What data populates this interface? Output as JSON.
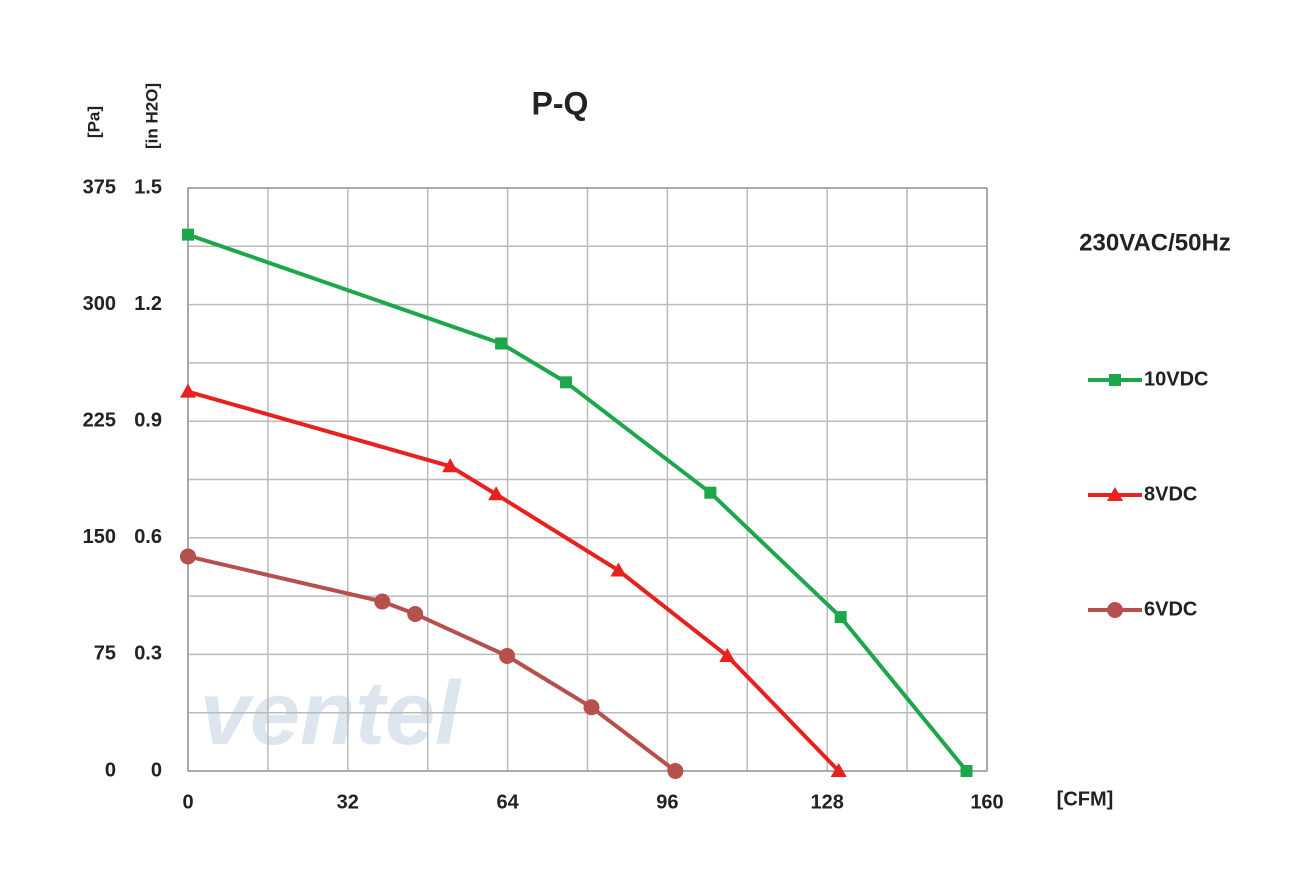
{
  "chart_data": {
    "type": "line",
    "title": "P-Q",
    "annotation": "230VAC/50Hz",
    "y_label": "[Pa]",
    "y2_label": "[in H2O]",
    "x_label": "[CFM]",
    "watermark": "ventel",
    "xlim": [
      0,
      160
    ],
    "xticks": [
      0,
      32,
      64,
      96,
      128,
      160
    ],
    "ylim": [
      0,
      375
    ],
    "yticks": [
      0,
      75,
      150,
      225,
      300,
      375
    ],
    "y2lim": [
      0,
      1.5
    ],
    "y2ticks": [
      0,
      0.3,
      0.6,
      0.9,
      1.2,
      1.5
    ],
    "grid": true,
    "minor_grid": true,
    "legend": "right",
    "series": [
      {
        "name": "10VDC",
        "color": "#1ea64b",
        "marker": "square",
        "x": [
          0,
          62.7,
          75.7,
          104.6,
          130.7,
          155.9
        ],
        "values": [
          345,
          275,
          250,
          179,
          99,
          0
        ]
      },
      {
        "name": "8VDC",
        "color": "#e8201e",
        "marker": "triangle",
        "x": [
          0,
          52.5,
          61.7,
          86.2,
          108,
          130.3
        ],
        "values": [
          244,
          196,
          178,
          129,
          74,
          0
        ]
      },
      {
        "name": "6VDC",
        "color": "#b5504c",
        "marker": "circle",
        "x": [
          0,
          38.9,
          45.5,
          63.9,
          80.8,
          97.6
        ],
        "values": [
          138,
          109,
          101,
          74,
          41,
          0
        ]
      }
    ]
  }
}
